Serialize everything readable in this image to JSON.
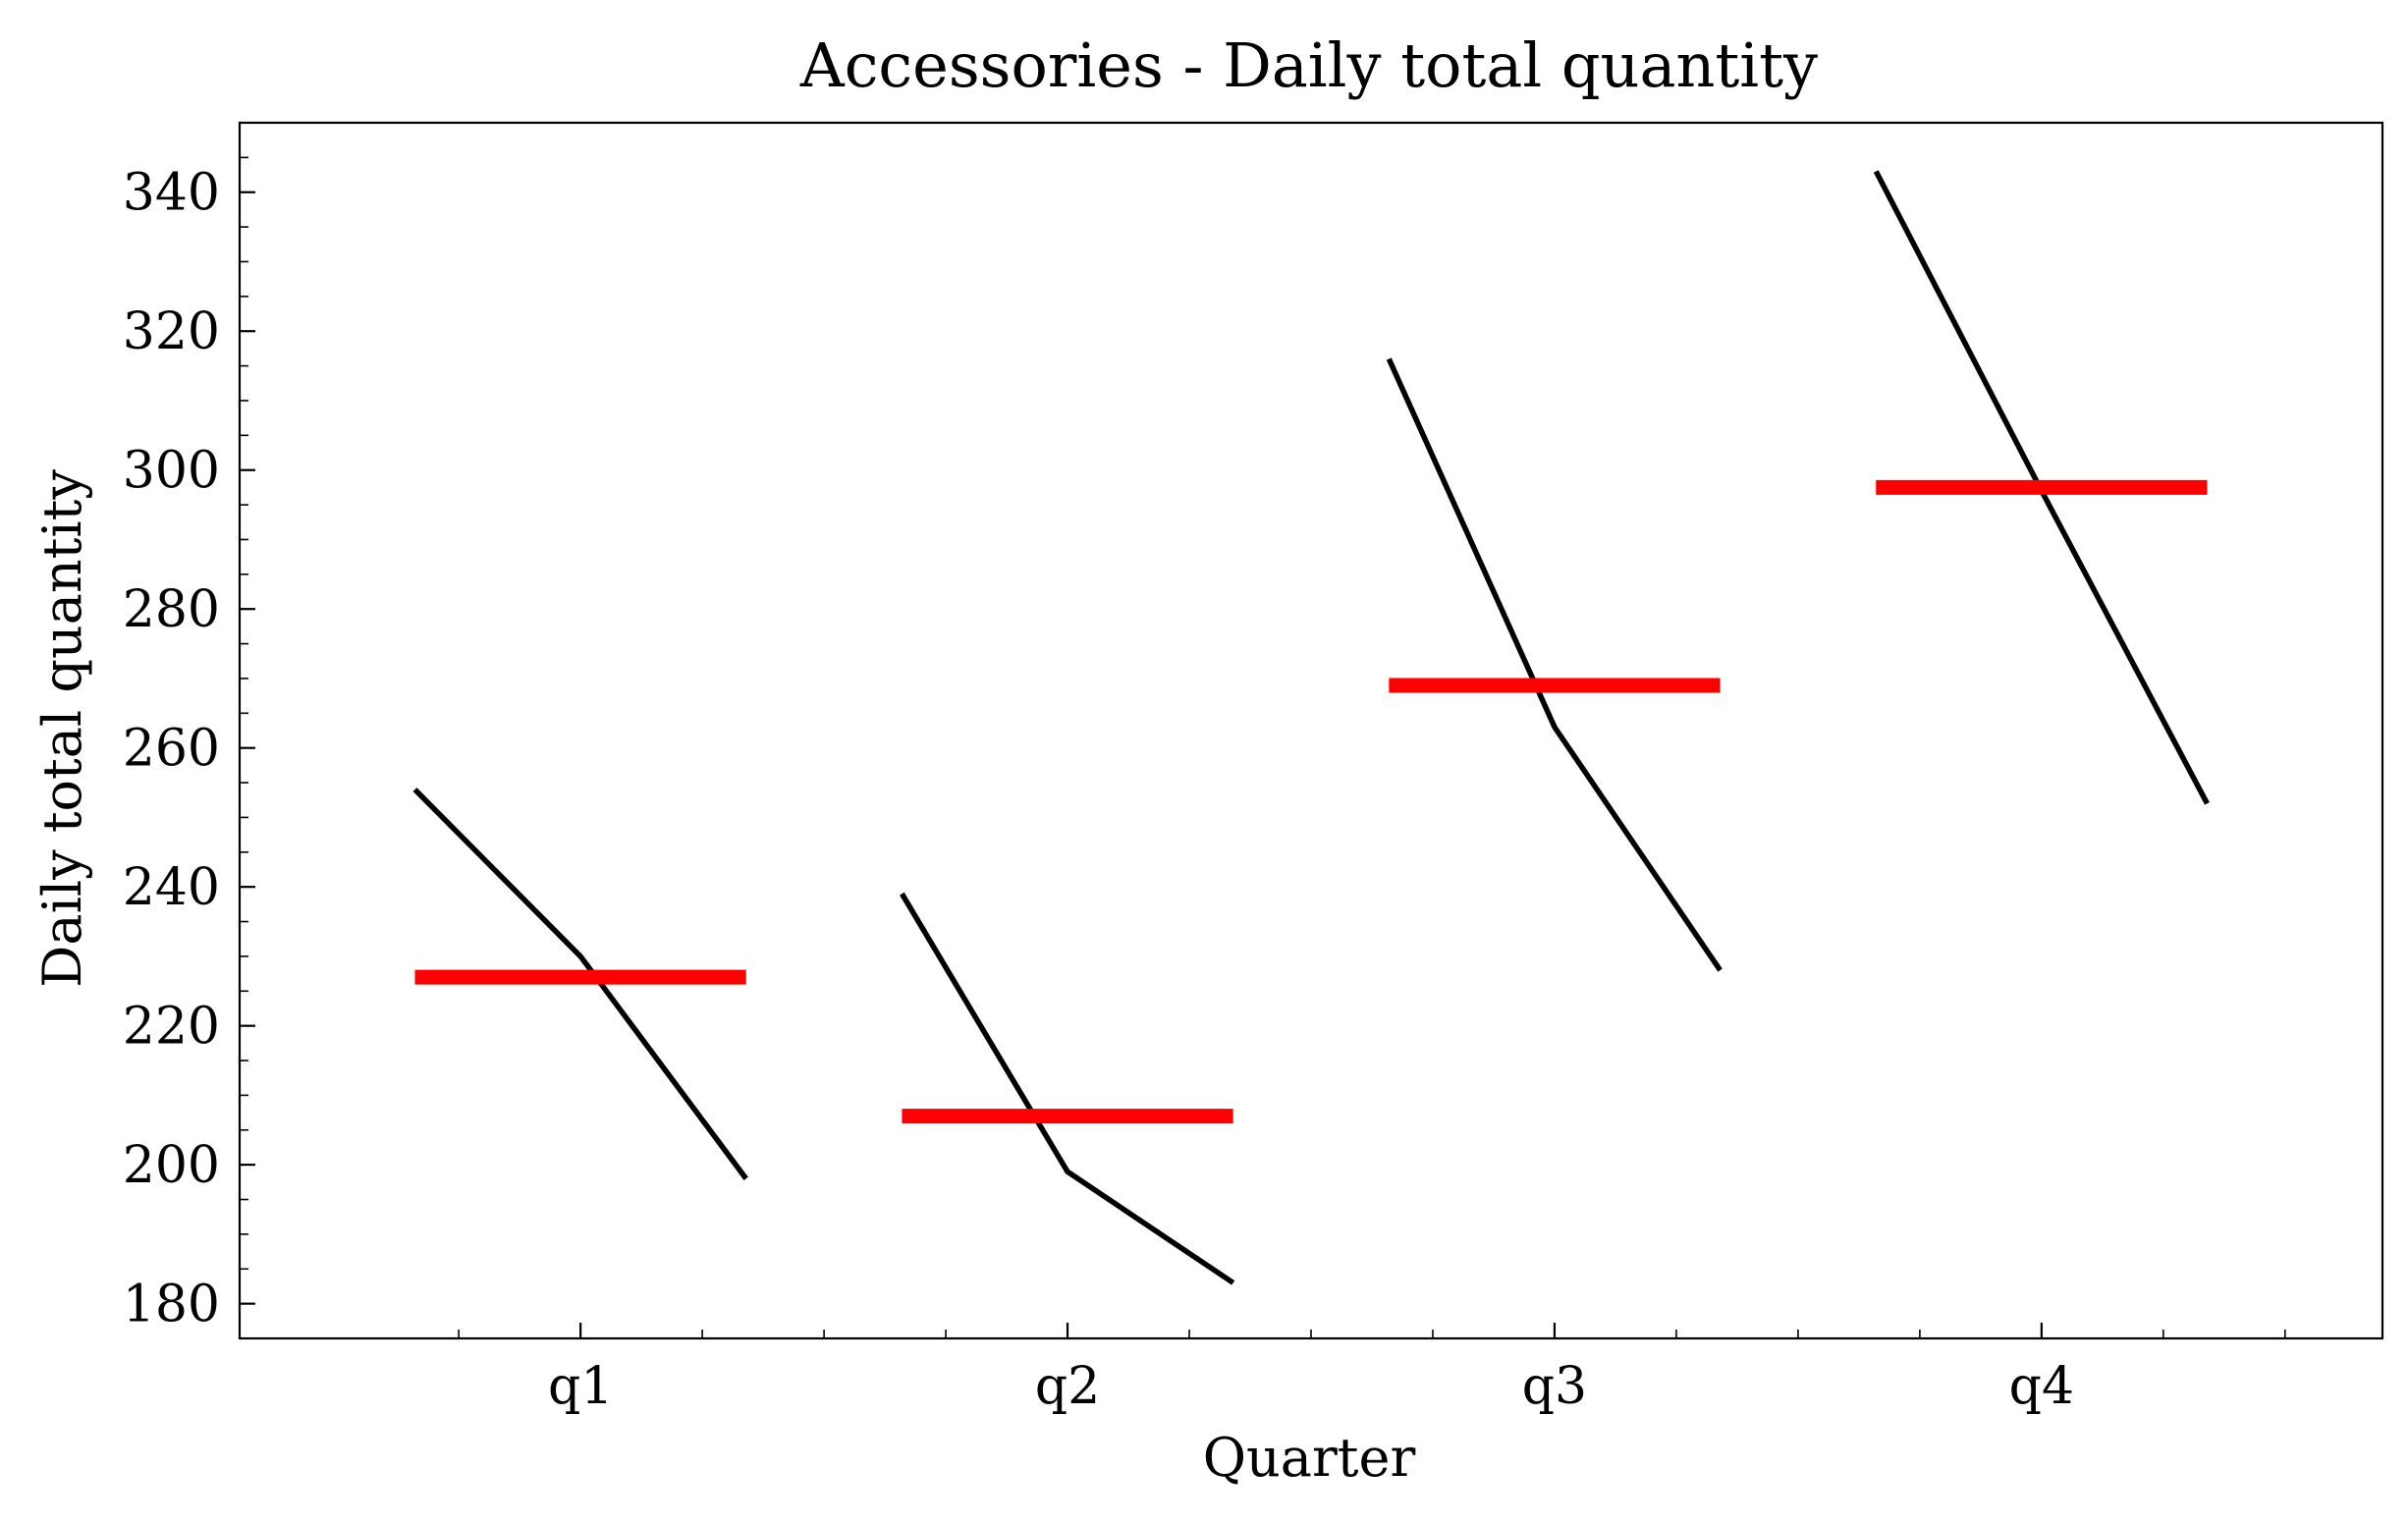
{
  "chart_data": {
    "type": "line",
    "title": "Accessories - Daily total quantity",
    "xlabel": "Quarter",
    "ylabel": "Daily total quantity",
    "categories": [
      "q1",
      "q2",
      "q3",
      "q4"
    ],
    "ylim": [
      175,
      350
    ],
    "yticks": [
      180,
      200,
      220,
      240,
      260,
      280,
      300,
      320,
      340
    ],
    "grid": false,
    "colors": {
      "trend_line": "#000000",
      "mean_line": "#ff0000"
    },
    "series": [
      {
        "category": "q1",
        "trend_values": [
          254,
          230,
          198
        ],
        "mean": 227
      },
      {
        "category": "q2",
        "trend_values": [
          239,
          199,
          183
        ],
        "mean": 207
      },
      {
        "category": "q3",
        "trend_values": [
          316,
          263,
          228
        ],
        "mean": 269
      },
      {
        "category": "q4",
        "trend_values": [
          343,
          297,
          252
        ],
        "mean": 297.5
      }
    ]
  }
}
